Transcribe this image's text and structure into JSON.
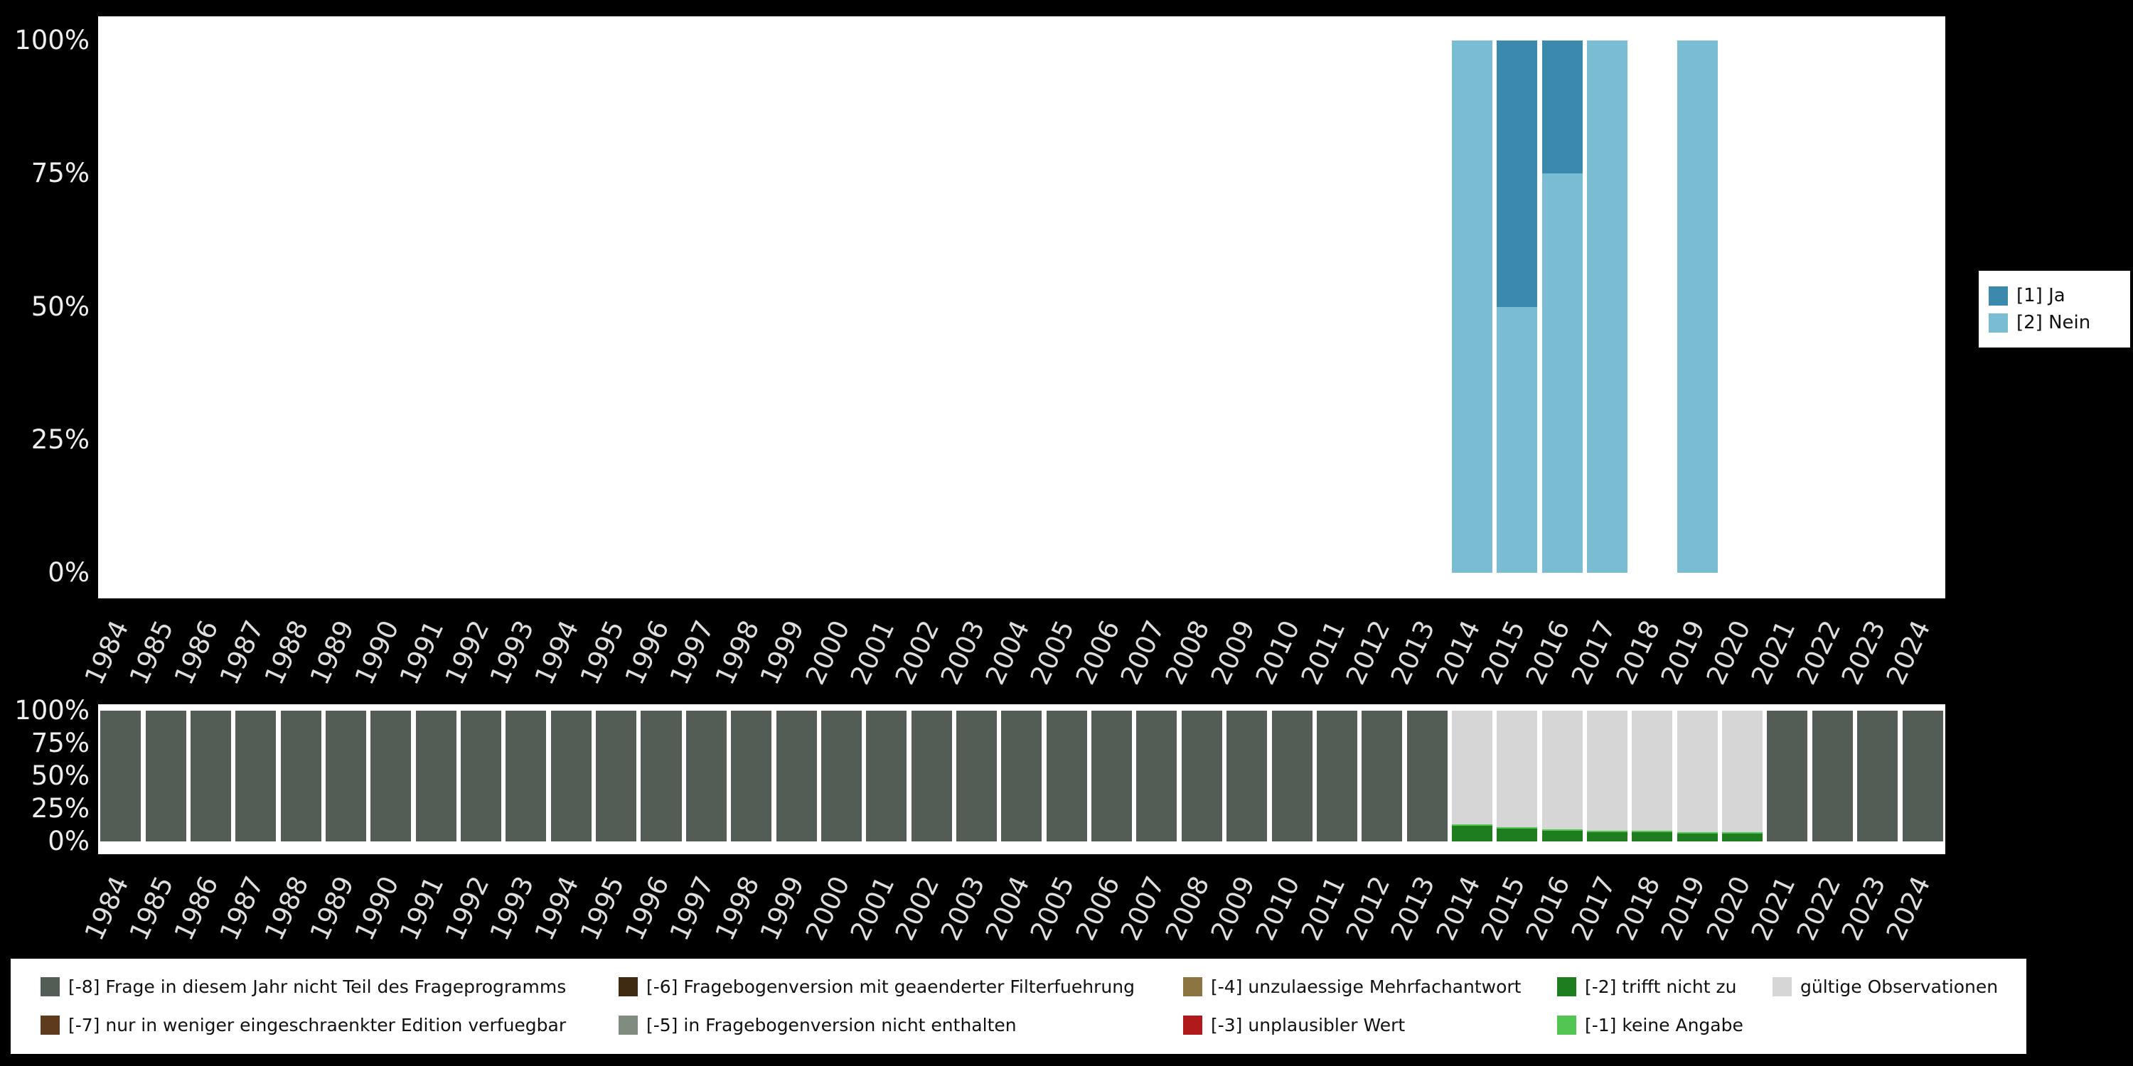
{
  "page": {
    "background_color": "#000000",
    "plot_background_color": "#ffffff"
  },
  "question_chart": {
    "y_tick_labels": [
      "100%",
      "75%",
      "50%",
      "25%",
      "0%"
    ],
    "legend": {
      "items": [
        {
          "label": "[1] Ja",
          "color": "#3b8aad"
        },
        {
          "label": "[2] Nein",
          "color": "#7abdd3"
        }
      ]
    }
  },
  "missings_chart": {
    "y_tick_labels": [
      "100%",
      "75%",
      "50%",
      "25%",
      "0%"
    ]
  },
  "missings_legend": {
    "rows": [
      [
        {
          "label": "[-8] Frage in diesem Jahr nicht Teil des Frageprogramms",
          "color": "#545d55"
        },
        {
          "label": "[-6] Fragebogenversion mit geaenderter Filterfuehrung",
          "color": "#3f2a12"
        },
        {
          "label": "[-4] unzulaessige Mehrfachantwort",
          "color": "#8c7540"
        },
        {
          "label": "[-2] trifft nicht zu",
          "color": "#1e7d1e"
        },
        {
          "label": "gültige Observationen",
          "color": "#d6d6d6"
        }
      ],
      [
        {
          "label": "[-7] nur in weniger eingeschraenkter Edition verfuegbar",
          "color": "#5e3b1d"
        },
        {
          "label": "[-5] in Fragebogenversion nicht enthalten",
          "color": "#7f8c7f"
        },
        {
          "label": "[-3] unplausibler Wert",
          "color": "#b11a1a"
        },
        {
          "label": "[-1] keine Angabe",
          "color": "#52c552"
        }
      ]
    ]
  },
  "chart_data": [
    {
      "id": "question-distribution",
      "type": "bar",
      "stacked": true,
      "unit": "percent",
      "ylim": [
        0,
        100
      ],
      "grid": false,
      "y_tick_labels": [
        "0%",
        "25%",
        "50%",
        "75%",
        "100%"
      ],
      "legend_position": "right",
      "categories": [
        "1984",
        "1985",
        "1986",
        "1987",
        "1988",
        "1989",
        "1990",
        "1991",
        "1992",
        "1993",
        "1994",
        "1995",
        "1996",
        "1997",
        "1998",
        "1999",
        "2000",
        "2001",
        "2002",
        "2003",
        "2004",
        "2005",
        "2006",
        "2007",
        "2008",
        "2009",
        "2010",
        "2011",
        "2012",
        "2013",
        "2014",
        "2015",
        "2016",
        "2017",
        "2018",
        "2019",
        "2020",
        "2021",
        "2022",
        "2023",
        "2024"
      ],
      "series_bottom_to_top": [
        {
          "name": "[2] Nein",
          "color": "#7abdd3",
          "values": [
            null,
            null,
            null,
            null,
            null,
            null,
            null,
            null,
            null,
            null,
            null,
            null,
            null,
            null,
            null,
            null,
            null,
            null,
            null,
            null,
            null,
            null,
            null,
            null,
            null,
            null,
            null,
            null,
            null,
            null,
            100,
            50,
            75,
            100,
            null,
            100,
            null,
            null,
            null,
            null,
            null
          ]
        },
        {
          "name": "[1] Ja",
          "color": "#3b8aad",
          "values": [
            null,
            null,
            null,
            null,
            null,
            null,
            null,
            null,
            null,
            null,
            null,
            null,
            null,
            null,
            null,
            null,
            null,
            null,
            null,
            null,
            null,
            null,
            null,
            null,
            null,
            null,
            null,
            null,
            null,
            null,
            0,
            50,
            25,
            0,
            null,
            0,
            null,
            null,
            null,
            null,
            null
          ]
        }
      ]
    },
    {
      "id": "missings-distribution",
      "type": "bar",
      "stacked": true,
      "unit": "percent",
      "ylim": [
        0,
        100
      ],
      "grid": false,
      "y_tick_labels": [
        "0%",
        "25%",
        "50%",
        "75%",
        "100%"
      ],
      "legend_position": "bottom",
      "categories": [
        "1984",
        "1985",
        "1986",
        "1987",
        "1988",
        "1989",
        "1990",
        "1991",
        "1992",
        "1993",
        "1994",
        "1995",
        "1996",
        "1997",
        "1998",
        "1999",
        "2000",
        "2001",
        "2002",
        "2003",
        "2004",
        "2005",
        "2006",
        "2007",
        "2008",
        "2009",
        "2010",
        "2011",
        "2012",
        "2013",
        "2014",
        "2015",
        "2016",
        "2017",
        "2018",
        "2019",
        "2020",
        "2021",
        "2022",
        "2023",
        "2024"
      ],
      "series_bottom_to_top": [
        {
          "name": "[-8] Frage in diesem Jahr nicht Teil des Frageprogramms",
          "color": "#545d55",
          "values": [
            100,
            100,
            100,
            100,
            100,
            100,
            100,
            100,
            100,
            100,
            100,
            100,
            100,
            100,
            100,
            100,
            100,
            100,
            100,
            100,
            100,
            100,
            100,
            100,
            100,
            100,
            100,
            100,
            100,
            100,
            0,
            0,
            0,
            0,
            0,
            0,
            0,
            100,
            100,
            100,
            100
          ]
        },
        {
          "name": "[-2] trifft nicht zu",
          "color": "#1e7d1e",
          "values": [
            0,
            0,
            0,
            0,
            0,
            0,
            0,
            0,
            0,
            0,
            0,
            0,
            0,
            0,
            0,
            0,
            0,
            0,
            0,
            0,
            0,
            0,
            0,
            0,
            0,
            0,
            0,
            0,
            0,
            0,
            12,
            10,
            8,
            7,
            7,
            6,
            6,
            0,
            0,
            0,
            0
          ]
        },
        {
          "name": "[-1] keine Angabe",
          "color": "#52c552",
          "values": [
            0,
            0,
            0,
            0,
            0,
            0,
            0,
            0,
            0,
            0,
            0,
            0,
            0,
            0,
            0,
            0,
            0,
            0,
            0,
            0,
            0,
            0,
            0,
            0,
            0,
            0,
            0,
            0,
            0,
            0,
            1,
            1,
            1,
            1,
            1,
            1,
            1,
            0,
            0,
            0,
            0
          ]
        },
        {
          "name": "gültige Observationen",
          "color": "#d6d6d6",
          "values": [
            0,
            0,
            0,
            0,
            0,
            0,
            0,
            0,
            0,
            0,
            0,
            0,
            0,
            0,
            0,
            0,
            0,
            0,
            0,
            0,
            0,
            0,
            0,
            0,
            0,
            0,
            0,
            0,
            0,
            0,
            87,
            89,
            91,
            92,
            92,
            93,
            93,
            0,
            0,
            0,
            0
          ]
        }
      ]
    }
  ]
}
